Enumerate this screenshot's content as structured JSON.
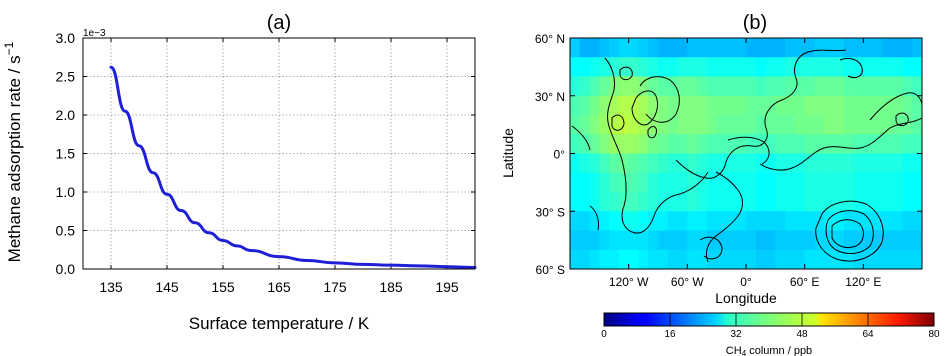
{
  "chart_data": [
    {
      "type": "line",
      "title": "(a)",
      "xlabel": "Surface temperature / K",
      "ylabel": "Methane adsorption rate / s",
      "ylabel_superscript": "−1",
      "offset_text": "1e−3",
      "xlim": [
        130,
        200
      ],
      "ylim": [
        0,
        3.0
      ],
      "x_ticks": [
        "135",
        "145",
        "155",
        "165",
        "175",
        "185",
        "195"
      ],
      "x_tick_values": [
        135,
        145,
        155,
        165,
        175,
        185,
        195
      ],
      "y_ticks": [
        "0.0",
        "0.5",
        "1.0",
        "1.5",
        "2.0",
        "2.5",
        "3.0"
      ],
      "y_tick_values": [
        0,
        0.5,
        1.0,
        1.5,
        2.0,
        2.5,
        3.0
      ],
      "grid": true,
      "line_color": "#1f1fd6",
      "series": [
        {
          "x": [
            135,
            137.5,
            140,
            142.5,
            145,
            147.5,
            150,
            152.5,
            155,
            157.5,
            160,
            165,
            170,
            175,
            180,
            185,
            190,
            195,
            200
          ],
          "values": [
            2.62,
            2.05,
            1.6,
            1.25,
            0.97,
            0.76,
            0.6,
            0.47,
            0.37,
            0.3,
            0.24,
            0.16,
            0.11,
            0.08,
            0.06,
            0.05,
            0.04,
            0.03,
            0.02
          ]
        }
      ]
    },
    {
      "type": "heatmap",
      "title": "(b)",
      "xlabel": "Longitude",
      "ylabel": "Latitude",
      "x_ticks": [
        "120° W",
        "60° W",
        "0°",
        "60° E",
        "120° E"
      ],
      "x_tick_values": [
        -120,
        -60,
        0,
        60,
        120
      ],
      "y_ticks": [
        "60° N",
        "30° N",
        "0°",
        "30° S",
        "60° S"
      ],
      "y_tick_values": [
        60,
        30,
        0,
        -30,
        -60
      ],
      "xlim": [
        -180,
        180
      ],
      "ylim": [
        -60,
        60
      ],
      "lat_edges": [
        60,
        50,
        40,
        30,
        20,
        10,
        0,
        -10,
        -20,
        -30,
        -40,
        -50,
        -60
      ],
      "rows": [
        [
          26,
          24,
          24,
          25,
          26,
          27,
          27,
          26,
          25,
          24,
          24,
          24,
          25,
          25,
          25,
          25,
          25,
          25,
          24,
          24,
          24,
          24,
          25,
          25,
          25,
          26,
          26,
          26,
          25,
          25,
          25,
          25,
          24,
          24,
          24,
          25
        ],
        [
          30,
          30,
          31,
          32,
          33,
          34,
          34,
          33,
          32,
          31,
          31,
          32,
          32,
          32,
          31,
          31,
          31,
          31,
          31,
          30,
          31,
          31,
          32,
          32,
          32,
          32,
          32,
          32,
          31,
          31,
          31,
          31,
          31,
          31,
          30,
          30
        ],
        [
          33,
          34,
          36,
          38,
          40,
          41,
          41,
          40,
          38,
          37,
          37,
          38,
          38,
          37,
          36,
          36,
          36,
          36,
          36,
          35,
          36,
          36,
          37,
          37,
          37,
          38,
          38,
          38,
          37,
          37,
          37,
          37,
          37,
          37,
          36,
          35
        ],
        [
          36,
          37,
          39,
          41,
          43,
          44,
          44,
          43,
          41,
          40,
          39,
          40,
          40,
          40,
          39,
          39,
          39,
          39,
          38,
          38,
          38,
          39,
          39,
          39,
          40,
          40,
          40,
          40,
          39,
          39,
          39,
          39,
          39,
          39,
          38,
          37
        ],
        [
          37,
          38,
          40,
          42,
          44,
          45,
          44,
          43,
          41,
          40,
          39,
          40,
          40,
          40,
          39,
          38,
          38,
          38,
          38,
          37,
          38,
          38,
          38,
          39,
          39,
          39,
          40,
          40,
          39,
          39,
          39,
          39,
          39,
          38,
          38,
          37
        ],
        [
          35,
          36,
          38,
          40,
          42,
          42,
          42,
          41,
          39,
          38,
          37,
          37,
          38,
          37,
          36,
          36,
          36,
          36,
          35,
          35,
          35,
          36,
          36,
          36,
          37,
          37,
          37,
          37,
          37,
          36,
          36,
          36,
          36,
          36,
          35,
          35
        ],
        [
          31,
          32,
          33,
          35,
          37,
          38,
          37,
          36,
          35,
          34,
          33,
          33,
          34,
          33,
          32,
          32,
          32,
          32,
          32,
          31,
          31,
          32,
          32,
          32,
          33,
          33,
          33,
          33,
          33,
          32,
          32,
          32,
          32,
          32,
          31,
          31
        ],
        [
          30,
          30,
          31,
          33,
          35,
          36,
          36,
          35,
          33,
          32,
          32,
          32,
          33,
          32,
          31,
          31,
          31,
          31,
          31,
          30,
          30,
          31,
          31,
          31,
          32,
          32,
          32,
          32,
          32,
          31,
          31,
          31,
          31,
          31,
          30,
          30
        ],
        [
          30,
          30,
          31,
          33,
          34,
          35,
          35,
          34,
          33,
          32,
          32,
          32,
          33,
          32,
          31,
          31,
          31,
          31,
          31,
          30,
          30,
          31,
          31,
          31,
          32,
          32,
          32,
          32,
          32,
          31,
          31,
          31,
          31,
          31,
          30,
          30
        ],
        [
          27,
          27,
          28,
          29,
          30,
          31,
          31,
          30,
          29,
          29,
          28,
          28,
          29,
          29,
          28,
          28,
          28,
          28,
          27,
          27,
          27,
          27,
          28,
          28,
          28,
          28,
          29,
          29,
          28,
          28,
          28,
          28,
          28,
          28,
          27,
          27
        ],
        [
          26,
          26,
          26,
          27,
          28,
          28,
          28,
          28,
          27,
          26,
          26,
          26,
          27,
          27,
          26,
          26,
          26,
          26,
          26,
          25,
          25,
          26,
          26,
          26,
          26,
          27,
          27,
          27,
          26,
          26,
          26,
          26,
          26,
          26,
          26,
          26
        ],
        [
          27,
          27,
          28,
          29,
          29,
          30,
          30,
          29,
          28,
          28,
          27,
          27,
          28,
          28,
          27,
          27,
          27,
          27,
          27,
          26,
          26,
          27,
          27,
          27,
          28,
          28,
          28,
          28,
          28,
          27,
          27,
          27,
          27,
          27,
          27,
          27
        ]
      ],
      "colorbar": {
        "label": "CH",
        "label_subscript": "4",
        "label_suffix": " column / ppb",
        "ticks": [
          "0",
          "16",
          "32",
          "48",
          "64",
          "80"
        ],
        "tick_values": [
          0,
          16,
          32,
          48,
          64,
          80
        ],
        "range": [
          0,
          80
        ],
        "colormap": "jet"
      }
    }
  ]
}
